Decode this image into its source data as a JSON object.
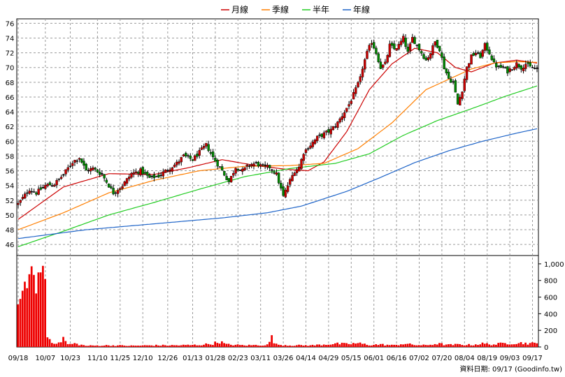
{
  "chart_data": {
    "type": "candlestick",
    "legend": [
      {
        "name": "月線",
        "color": "#cc0000"
      },
      {
        "name": "季線",
        "color": "#ff7f00"
      },
      {
        "name": "半年",
        "color": "#22cc22"
      },
      {
        "name": "年線",
        "color": "#1e64c8"
      }
    ],
    "price_axis": {
      "ylim": [
        44.5,
        76.6
      ],
      "ticks": [
        46,
        48,
        50,
        52,
        54,
        56,
        58,
        60,
        62,
        64,
        66,
        68,
        70,
        72,
        74,
        76
      ]
    },
    "volume_axis": {
      "ylim": [
        0,
        1100
      ],
      "ticks": [
        0,
        200,
        400,
        600,
        800,
        1000
      ],
      "tick_labels": [
        "0",
        "200",
        "400",
        "600",
        "800",
        "1,000"
      ]
    },
    "x_labels": [
      "09/18",
      "10/07",
      "10/23",
      "11/10",
      "11/25",
      "12/10",
      "12/26",
      "01/13",
      "01/28",
      "02/23",
      "03/11",
      "03/26",
      "04/14",
      "04/29",
      "05/15",
      "06/01",
      "06/16",
      "07/02",
      "07/20",
      "08/04",
      "08/19",
      "09/03",
      "09/17"
    ],
    "x_label_index": [
      0,
      12,
      23,
      35,
      45,
      55,
      66,
      77,
      87,
      97,
      107,
      117,
      127,
      137,
      147,
      157,
      167,
      177,
      187,
      197,
      207,
      217,
      227
    ],
    "footer": "資料日期: 09/17  (Goodinfo.tw)",
    "ma_series": [
      {
        "name": "月線",
        "color": "#cc0000",
        "anchors": [
          [
            0,
            49.4
          ],
          [
            20,
            53.8
          ],
          [
            40,
            55.6
          ],
          [
            60,
            55.5
          ],
          [
            75,
            56.4
          ],
          [
            90,
            57.5
          ],
          [
            105,
            56.7
          ],
          [
            118,
            56.2
          ],
          [
            128,
            56.0
          ],
          [
            135,
            57.2
          ],
          [
            145,
            61.3
          ],
          [
            155,
            67.0
          ],
          [
            165,
            70.5
          ],
          [
            175,
            72.6
          ],
          [
            185,
            72.0
          ],
          [
            193,
            70.0
          ],
          [
            200,
            69.4
          ],
          [
            210,
            70.6
          ],
          [
            220,
            71.0
          ],
          [
            229,
            70.6
          ]
        ]
      },
      {
        "name": "季線",
        "color": "#ff7f00",
        "anchors": [
          [
            0,
            48.0
          ],
          [
            20,
            50.3
          ],
          [
            40,
            53.0
          ],
          [
            60,
            54.7
          ],
          [
            80,
            56.0
          ],
          [
            100,
            56.6
          ],
          [
            120,
            56.7
          ],
          [
            135,
            57.0
          ],
          [
            150,
            59.0
          ],
          [
            165,
            62.5
          ],
          [
            180,
            67.0
          ],
          [
            190,
            68.4
          ],
          [
            200,
            69.8
          ],
          [
            210,
            70.6
          ],
          [
            220,
            70.8
          ],
          [
            229,
            70.7
          ]
        ]
      },
      {
        "name": "半年",
        "color": "#22cc22",
        "anchors": [
          [
            0,
            45.7
          ],
          [
            20,
            47.8
          ],
          [
            40,
            50.0
          ],
          [
            60,
            51.7
          ],
          [
            80,
            53.5
          ],
          [
            100,
            55.2
          ],
          [
            120,
            56.3
          ],
          [
            140,
            57.0
          ],
          [
            155,
            58.3
          ],
          [
            170,
            60.8
          ],
          [
            185,
            62.8
          ],
          [
            200,
            64.4
          ],
          [
            215,
            66.1
          ],
          [
            229,
            67.5
          ]
        ]
      },
      {
        "name": "年線",
        "color": "#1e64c8",
        "anchors": [
          [
            0,
            46.8
          ],
          [
            30,
            48.0
          ],
          [
            60,
            48.8
          ],
          [
            90,
            49.6
          ],
          [
            110,
            50.3
          ],
          [
            125,
            51.2
          ],
          [
            145,
            53.2
          ],
          [
            160,
            55.1
          ],
          [
            175,
            57.1
          ],
          [
            190,
            58.7
          ],
          [
            205,
            60.0
          ],
          [
            220,
            61.1
          ],
          [
            229,
            61.7
          ]
        ]
      }
    ],
    "close_anchors": [
      [
        0,
        51.5
      ],
      [
        5,
        53.5
      ],
      [
        8,
        53.0
      ],
      [
        12,
        54.0
      ],
      [
        16,
        54.2
      ],
      [
        20,
        55.5
      ],
      [
        24,
        57.2
      ],
      [
        27,
        57.8
      ],
      [
        30,
        56.0
      ],
      [
        33,
        56.3
      ],
      [
        37,
        55.5
      ],
      [
        40,
        54.0
      ],
      [
        42,
        53.0
      ],
      [
        46,
        54.0
      ],
      [
        50,
        55.6
      ],
      [
        54,
        56.0
      ],
      [
        58,
        55.0
      ],
      [
        62,
        55.3
      ],
      [
        66,
        56.2
      ],
      [
        70,
        57.0
      ],
      [
        73,
        58.0
      ],
      [
        77,
        57.5
      ],
      [
        80,
        58.5
      ],
      [
        83,
        59.5
      ],
      [
        86,
        57.8
      ],
      [
        90,
        56.0
      ],
      [
        93,
        54.5
      ],
      [
        96,
        56.5
      ],
      [
        99,
        56.0
      ],
      [
        102,
        56.8
      ],
      [
        105,
        57.0
      ],
      [
        108,
        56.5
      ],
      [
        111,
        56.5
      ],
      [
        114,
        55.5
      ],
      [
        117,
        52.5
      ],
      [
        119,
        54.0
      ],
      [
        122,
        56.0
      ],
      [
        124,
        56.5
      ],
      [
        126,
        58.5
      ],
      [
        129,
        59.5
      ],
      [
        132,
        60.5
      ],
      [
        135,
        61.0
      ],
      [
        138,
        61.5
      ],
      [
        141,
        62.5
      ],
      [
        144,
        64.0
      ],
      [
        146,
        65.0
      ],
      [
        149,
        67.0
      ],
      [
        151,
        68.5
      ],
      [
        152,
        70.0
      ],
      [
        154,
        72.0
      ],
      [
        156,
        73.5
      ],
      [
        158,
        72.0
      ],
      [
        160,
        70.0
      ],
      [
        162,
        70.5
      ],
      [
        164,
        73.0
      ],
      [
        166,
        72.5
      ],
      [
        168,
        73.0
      ],
      [
        170,
        74.0
      ],
      [
        172,
        72.0
      ],
      [
        174,
        74.0
      ],
      [
        176,
        73.0
      ],
      [
        178,
        72.0
      ],
      [
        180,
        71.0
      ],
      [
        182,
        72.0
      ],
      [
        184,
        73.5
      ],
      [
        186,
        72.5
      ],
      [
        188,
        70.0
      ],
      [
        190,
        68.5
      ],
      [
        192,
        68.0
      ],
      [
        194,
        65.0
      ],
      [
        196,
        67.0
      ],
      [
        198,
        70.0
      ],
      [
        200,
        71.5
      ],
      [
        202,
        72.0
      ],
      [
        204,
        71.5
      ],
      [
        206,
        73.0
      ],
      [
        208,
        72.0
      ],
      [
        210,
        70.5
      ],
      [
        212,
        70.0
      ],
      [
        214,
        70.0
      ],
      [
        216,
        69.5
      ],
      [
        218,
        70.0
      ],
      [
        220,
        70.5
      ],
      [
        222,
        70.0
      ],
      [
        224,
        70.5
      ],
      [
        226,
        70.0
      ],
      [
        229,
        69.8
      ]
    ],
    "volume_anchors": [
      [
        0,
        540
      ],
      [
        3,
        720
      ],
      [
        6,
        900
      ],
      [
        8,
        620
      ],
      [
        10,
        1020
      ],
      [
        12,
        850
      ],
      [
        13,
        120
      ],
      [
        15,
        70
      ],
      [
        18,
        40
      ],
      [
        20,
        110
      ],
      [
        22,
        30
      ],
      [
        25,
        40
      ],
      [
        30,
        15
      ],
      [
        40,
        20
      ],
      [
        50,
        15
      ],
      [
        60,
        20
      ],
      [
        70,
        20
      ],
      [
        80,
        25
      ],
      [
        86,
        40
      ],
      [
        89,
        65
      ],
      [
        92,
        30
      ],
      [
        100,
        20
      ],
      [
        110,
        25
      ],
      [
        112,
        110
      ],
      [
        114,
        30
      ],
      [
        120,
        20
      ],
      [
        130,
        20
      ],
      [
        140,
        40
      ],
      [
        145,
        35
      ],
      [
        150,
        45
      ],
      [
        155,
        25
      ],
      [
        160,
        30
      ],
      [
        166,
        20
      ],
      [
        170,
        40
      ],
      [
        175,
        25
      ],
      [
        180,
        20
      ],
      [
        185,
        40
      ],
      [
        190,
        25
      ],
      [
        195,
        30
      ],
      [
        200,
        25
      ],
      [
        205,
        40
      ],
      [
        210,
        30
      ],
      [
        215,
        45
      ],
      [
        220,
        50
      ],
      [
        225,
        45
      ],
      [
        229,
        40
      ]
    ]
  }
}
